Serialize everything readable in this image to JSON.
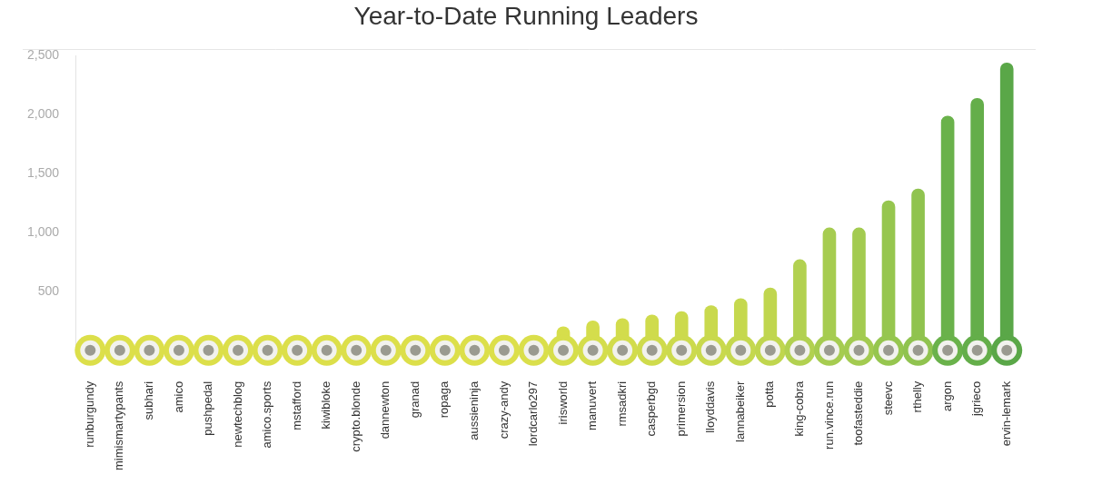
{
  "chart_data": {
    "type": "bar",
    "title": "Year-to-Date Running Leaders",
    "categories": [
      "runburgundy",
      "mimismartypants",
      "subhari",
      "amico",
      "pushpedal",
      "newtechblog",
      "amico.sports",
      "mstafford",
      "kiwibloke",
      "crypto.blonde",
      "dannewton",
      "granad",
      "ropaga",
      "aussieninja",
      "crazy-andy",
      "lordcarlo297",
      "irisworld",
      "manuvert",
      "rmsadkri",
      "casperbgd",
      "primersion",
      "lloyddavis",
      "lannabeiker",
      "potta",
      "king-cobra",
      "run.vince.run",
      "toofasteddie",
      "steevc",
      "rthelly",
      "argon",
      "jgrieco",
      "ervin-lemark"
    ],
    "values": [
      0,
      0,
      0,
      0,
      0,
      0,
      0,
      0,
      0,
      0,
      0,
      0,
      0,
      0,
      20,
      30,
      200,
      250,
      270,
      300,
      330,
      380,
      440,
      530,
      770,
      1040,
      1040,
      1270,
      1370,
      1990,
      2140,
      2440
    ],
    "colors": [
      "#dcdf4a",
      "#dcdf4a",
      "#dcdf4a",
      "#dcdf4a",
      "#dcdf4a",
      "#dcdf4a",
      "#dcdf4a",
      "#dcdf4a",
      "#dcdf4a",
      "#dcdf4a",
      "#dcdf4a",
      "#dcdf4a",
      "#dcdf4a",
      "#dcdf4a",
      "#dcdf4a",
      "#dadf4b",
      "#d6de4b",
      "#d4dd4c",
      "#d2dc4c",
      "#cfdb4c",
      "#ccda4d",
      "#c9d94d",
      "#c5d84e",
      "#c0d64e",
      "#b2d150",
      "#a6cc50",
      "#a3cb50",
      "#96c64f",
      "#90c34f",
      "#6ab24b",
      "#64ae4a",
      "#5aa748"
    ],
    "ylim": [
      0,
      2500
    ],
    "yticks": [
      500,
      {
        "value": 1000,
        "label": "1,000"
      },
      {
        "value": 1500,
        "label": "1,500"
      },
      {
        "value": 2000,
        "label": "2,000"
      },
      {
        "value": 2500,
        "label": "2,500"
      }
    ],
    "grid": false
  }
}
